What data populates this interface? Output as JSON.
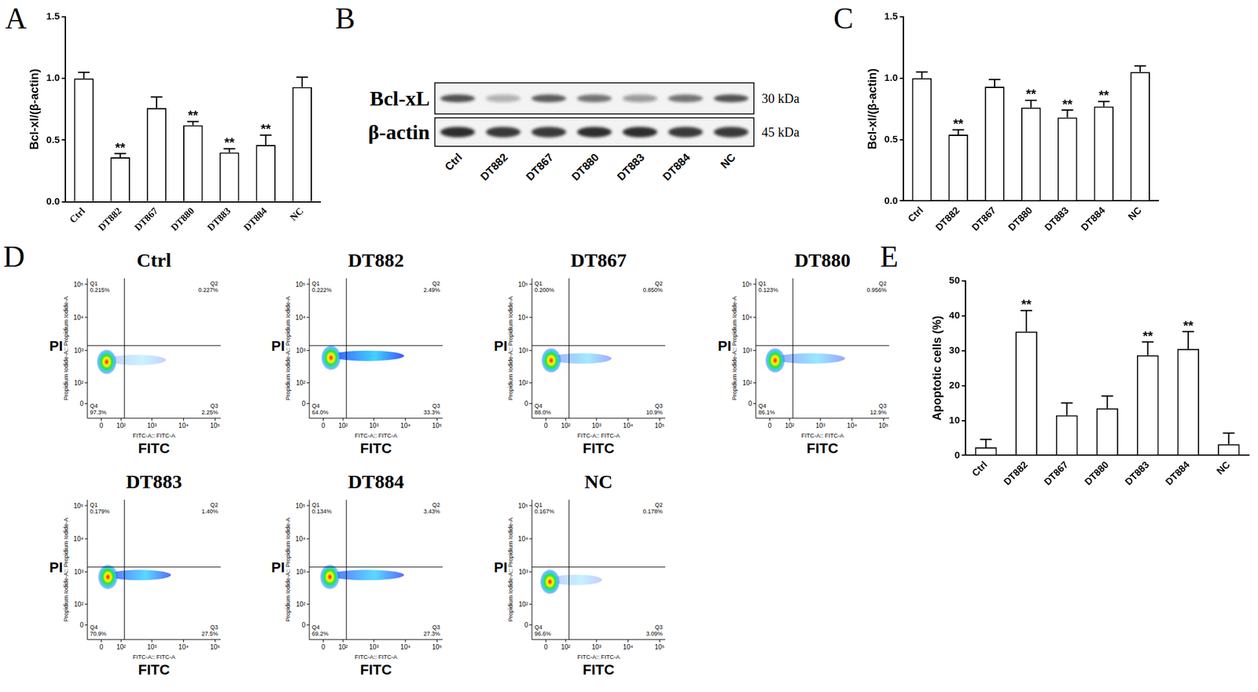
{
  "chart_data": [
    {
      "panel": "A",
      "type": "bar",
      "y_label": "Bcl-xl/(β-actin)",
      "categories": [
        "Ctrl",
        "DT882",
        "DT867",
        "DT880",
        "DT883",
        "DT884",
        "NC"
      ],
      "values": [
        1.0,
        0.36,
        0.76,
        0.62,
        0.4,
        0.46,
        0.93
      ],
      "errors": [
        0.05,
        0.03,
        0.09,
        0.03,
        0.03,
        0.08,
        0.08
      ],
      "color": "#ffffff",
      "grid": false,
      "ylim": [
        0,
        1.5
      ],
      "yticks": [
        {
          "value": 0,
          "label": "0.0"
        },
        {
          "value": 0.5,
          "label": "0.5"
        },
        {
          "value": 1,
          "label": "1.0"
        },
        {
          "value": 1.5,
          "label": "1.5"
        }
      ],
      "annotations": [
        {
          "category": "DT882",
          "text": "**"
        },
        {
          "category": "DT880",
          "text": "**"
        },
        {
          "category": "DT883",
          "text": "**"
        },
        {
          "category": "DT884",
          "text": "**"
        }
      ]
    },
    {
      "panel": "C",
      "type": "bar",
      "y_label": "Bcl-xl/(β-actin)",
      "categories": [
        "Ctrl",
        "DT882",
        "DT867",
        "DT880",
        "DT883",
        "DT884",
        "NC"
      ],
      "values": [
        1.0,
        0.54,
        0.93,
        0.76,
        0.68,
        0.77,
        1.05
      ],
      "errors": [
        0.05,
        0.04,
        0.06,
        0.06,
        0.06,
        0.04,
        0.05
      ],
      "color": "#ffffff",
      "grid": false,
      "ylim": [
        0,
        1.5
      ],
      "yticks": [
        {
          "value": 0,
          "label": "0.0"
        },
        {
          "value": 0.5,
          "label": "0.5"
        },
        {
          "value": 1,
          "label": "1.0"
        },
        {
          "value": 1.5,
          "label": "1.5"
        }
      ],
      "annotations": [
        {
          "category": "DT882",
          "text": "**"
        },
        {
          "category": "DT880",
          "text": "**"
        },
        {
          "category": "DT883",
          "text": "**"
        },
        {
          "category": "DT884",
          "text": "**"
        }
      ]
    },
    {
      "panel": "E",
      "type": "bar",
      "y_label": "Apoptotic cells (%)",
      "categories": [
        "Ctrl",
        "DT882",
        "DT867",
        "DT880",
        "DT883",
        "DT884",
        "NC"
      ],
      "values": [
        2.3,
        35.5,
        11.5,
        13.5,
        28.7,
        30.5,
        3.2
      ],
      "errors": [
        2.3,
        6.0,
        3.5,
        3.5,
        3.8,
        5.0,
        3.2
      ],
      "color": "#ffffff",
      "grid": false,
      "ylim": [
        0,
        50
      ],
      "yticks": [
        0,
        10,
        20,
        30,
        40,
        50
      ],
      "annotations": [
        {
          "category": "DT882",
          "text": "**"
        },
        {
          "category": "DT883",
          "text": "**"
        },
        {
          "category": "DT884",
          "text": "**"
        }
      ]
    }
  ],
  "blot": {
    "panel": "B",
    "lanes": [
      "Ctrl",
      "DT882",
      "DT867",
      "DT880",
      "DT883",
      "DT884",
      "NC"
    ],
    "bands": [
      {
        "name": "Bcl-xL",
        "size": "30 kDa",
        "intensity": [
          0.75,
          0.3,
          0.7,
          0.6,
          0.4,
          0.6,
          0.75
        ]
      },
      {
        "name": "β-actin",
        "size": "45 kDa",
        "intensity": [
          0.9,
          0.85,
          0.85,
          0.9,
          0.9,
          0.85,
          0.85
        ]
      }
    ]
  },
  "flow": {
    "panel": "D",
    "x_label": "FITC-A:: FITC-A",
    "x_short": "FITC",
    "y_label": "Propidium Iodide-A:: Propidium Iodide-A",
    "y_short": "PI",
    "xlim": [
      -60,
      150000
    ],
    "ylim": [
      -60,
      150000
    ],
    "xticks": [
      {
        "value": 0,
        "label": "0"
      },
      {
        "value": 100,
        "label": "10²"
      },
      {
        "value": 1000,
        "label": "10³"
      },
      {
        "value": 10000,
        "label": "10⁴"
      },
      {
        "value": 100000,
        "label": "10⁵"
      }
    ],
    "yticks": [
      {
        "value": 0,
        "label": "0"
      },
      {
        "value": 100,
        "label": "10²"
      },
      {
        "value": 1000,
        "label": "10³"
      },
      {
        "value": 10000,
        "label": "10⁴"
      },
      {
        "value": 100000,
        "label": "10⁵"
      }
    ],
    "gates": {
      "x": 130,
      "y": 1400
    },
    "plots": [
      {
        "title": "Ctrl",
        "population": {
          "x": 20,
          "y": 450
        },
        "tail_x": 2800,
        "quadrants": [
          {
            "name": "Q1",
            "value": 0.215,
            "label": "0.215%"
          },
          {
            "name": "Q2",
            "value": 0.227,
            "label": "0.227%"
          },
          {
            "name": "Q3",
            "value": 2.25,
            "label": "2.25%"
          },
          {
            "name": "Q4",
            "value": 97.3,
            "label": "97.3%"
          }
        ]
      },
      {
        "title": "DT882",
        "population": {
          "x": 30,
          "y": 600
        },
        "tail_x": 9000,
        "quadrants": [
          {
            "name": "Q1",
            "value": 0.222,
            "label": "0.222%"
          },
          {
            "name": "Q2",
            "value": 2.49,
            "label": "2.49%"
          },
          {
            "name": "Q3",
            "value": 33.3,
            "label": "33.3%"
          },
          {
            "name": "Q4",
            "value": 64.0,
            "label": "64.0%"
          }
        ]
      },
      {
        "title": "DT867",
        "population": {
          "x": 20,
          "y": 500
        },
        "tail_x": 3000,
        "quadrants": [
          {
            "name": "Q1",
            "value": 0.2,
            "label": "0.200%"
          },
          {
            "name": "Q2",
            "value": 0.85,
            "label": "0.850%"
          },
          {
            "name": "Q3",
            "value": 10.9,
            "label": "10.9%"
          },
          {
            "name": "Q4",
            "value": 88.0,
            "label": "88.0%"
          }
        ]
      },
      {
        "title": "DT880",
        "population": {
          "x": 20,
          "y": 500
        },
        "tail_x": 6000,
        "quadrants": [
          {
            "name": "Q1",
            "value": 0.123,
            "label": "0.123%"
          },
          {
            "name": "Q2",
            "value": 0.956,
            "label": "0.956%"
          },
          {
            "name": "Q3",
            "value": 12.9,
            "label": "12.9%"
          },
          {
            "name": "Q4",
            "value": 86.1,
            "label": "86.1%"
          }
        ]
      },
      {
        "title": "DT883",
        "population": {
          "x": 25,
          "y": 700
        },
        "tail_x": 4000,
        "quadrants": [
          {
            "name": "Q1",
            "value": 0.179,
            "label": "0.179%"
          },
          {
            "name": "Q2",
            "value": 1.4,
            "label": "1.40%"
          },
          {
            "name": "Q3",
            "value": 27.5,
            "label": "27.5%"
          },
          {
            "name": "Q4",
            "value": 70.9,
            "label": "70.9%"
          }
        ]
      },
      {
        "title": "DT884",
        "population": {
          "x": 25,
          "y": 700
        },
        "tail_x": 9000,
        "quadrants": [
          {
            "name": "Q1",
            "value": 0.134,
            "label": "0.134%"
          },
          {
            "name": "Q2",
            "value": 3.43,
            "label": "3.43%"
          },
          {
            "name": "Q3",
            "value": 27.3,
            "label": "27.3%"
          },
          {
            "name": "Q4",
            "value": 69.2,
            "label": "69.2%"
          }
        ]
      },
      {
        "title": "NC",
        "population": {
          "x": 15,
          "y": 500
        },
        "tail_x": 1500,
        "quadrants": [
          {
            "name": "Q1",
            "value": 0.167,
            "label": "0.167%"
          },
          {
            "name": "Q2",
            "value": 0.178,
            "label": "0.178%"
          },
          {
            "name": "Q3",
            "value": 3.09,
            "label": "3.09%"
          },
          {
            "name": "Q4",
            "value": 96.6,
            "label": "96.6%"
          }
        ]
      }
    ]
  }
}
